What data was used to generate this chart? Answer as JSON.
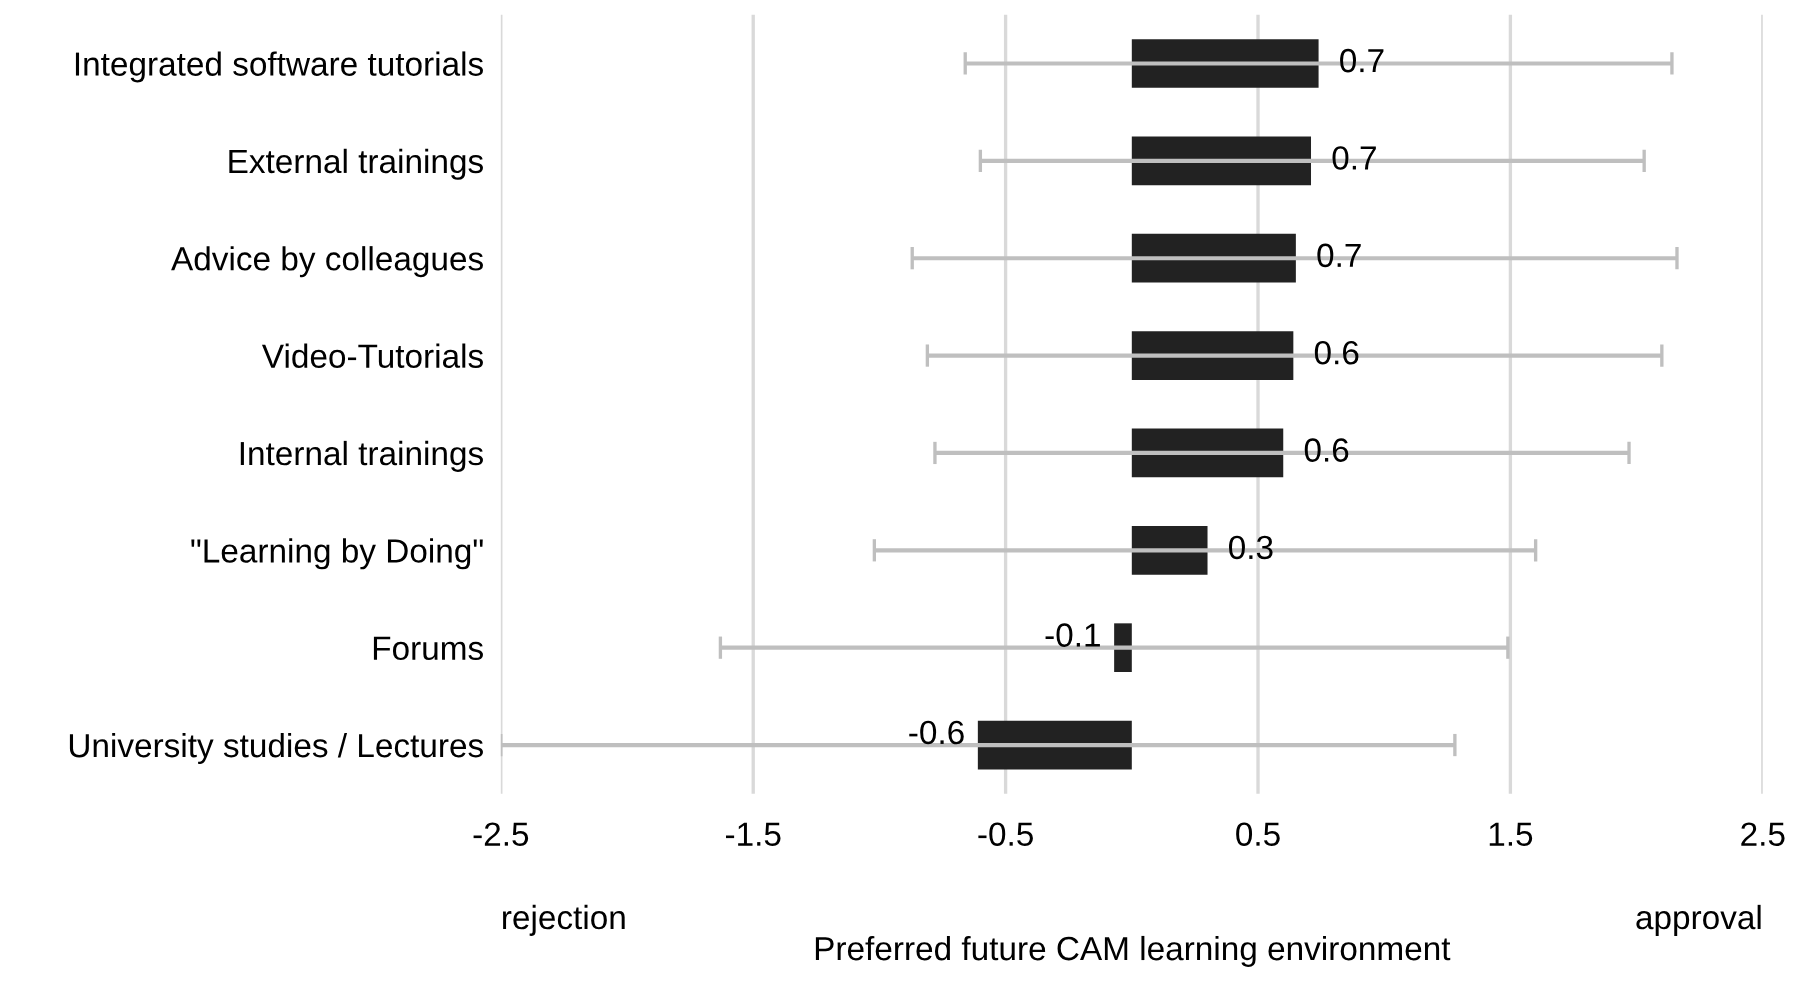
{
  "chart_data": {
    "type": "bar",
    "orientation": "horizontal",
    "xlabel": "Preferred future CAM learning environment",
    "categories": [
      "Integrated software tutorials",
      "External trainings",
      "Advice by colleagues",
      "Video-Tutorials",
      "Internal trainings",
      "\"Learning by Doing\"",
      "Forums",
      "University studies / Lectures"
    ],
    "values": [
      0.74,
      0.71,
      0.65,
      0.64,
      0.6,
      0.3,
      -0.07,
      -0.61
    ],
    "value_labels": [
      "0.7",
      "0.7",
      "0.7",
      "0.6",
      "0.6",
      "0.3",
      "-0.1",
      "-0.6"
    ],
    "errors": [
      [
        -0.66,
        2.14
      ],
      [
        -0.6,
        2.03
      ],
      [
        -0.87,
        2.16
      ],
      [
        -0.81,
        2.1
      ],
      [
        -0.78,
        1.97
      ],
      [
        -1.02,
        1.6
      ],
      [
        -1.63,
        1.49
      ],
      [
        -2.5,
        1.28
      ]
    ],
    "color": "#222222",
    "xlim": [
      -2.5,
      2.5
    ],
    "xticks": [
      -2.5,
      -1.5,
      -0.5,
      0.5,
      1.5,
      2.5
    ],
    "grid": "x",
    "annotations": [
      "rejection",
      "approval"
    ]
  }
}
